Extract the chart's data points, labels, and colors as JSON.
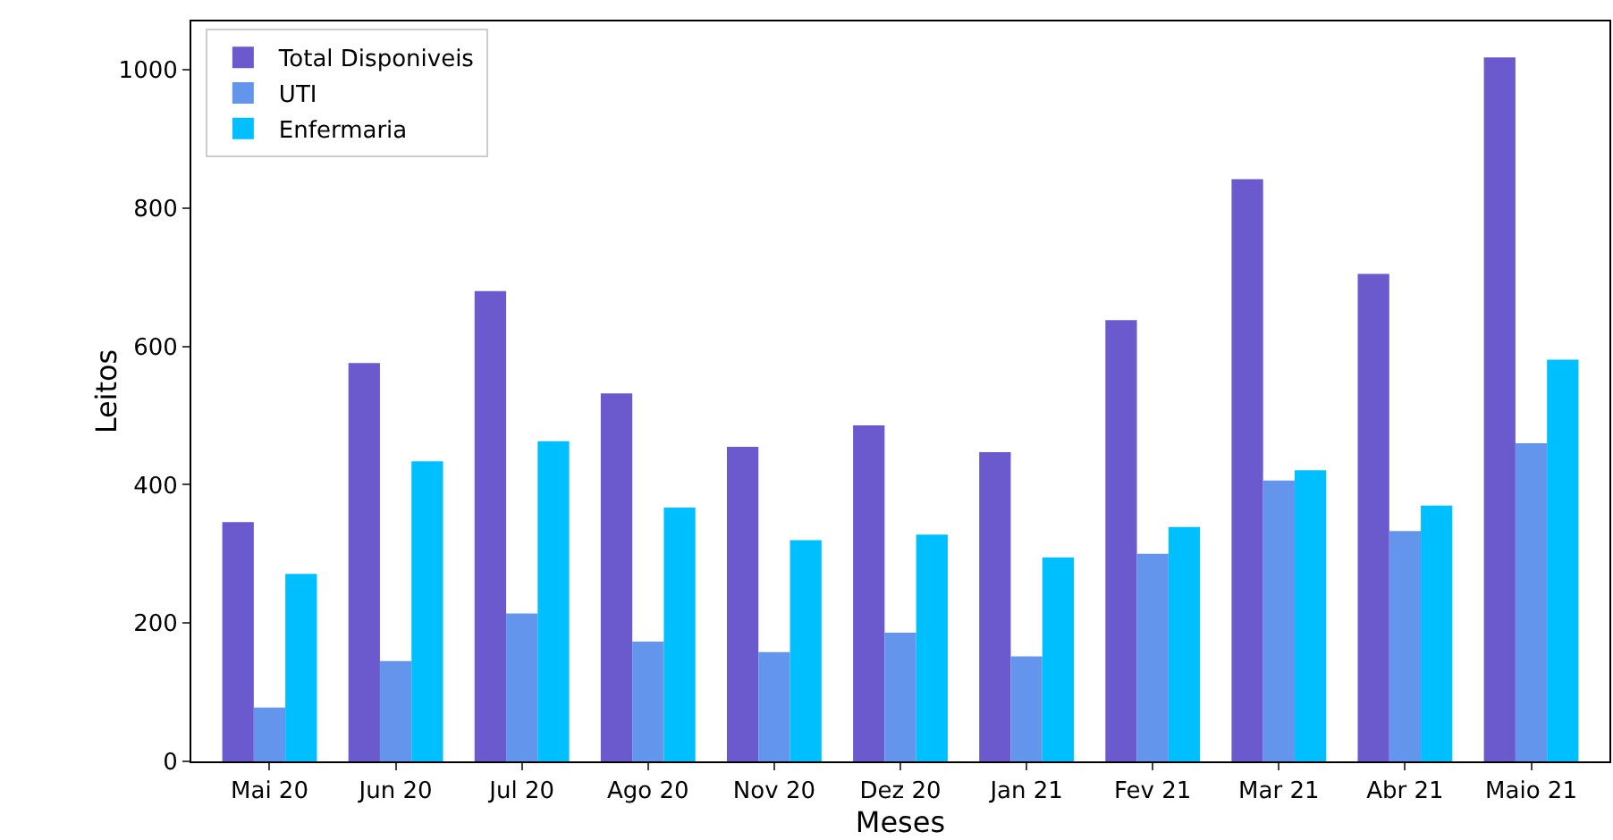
{
  "chart_data": {
    "type": "bar",
    "xlabel": "Meses",
    "ylabel": "Leitos",
    "categories": [
      "Mai 20",
      "Jun 20",
      "Jul 20",
      "Ago 20",
      "Nov 20",
      "Dez 20",
      "Jan 21",
      "Fev 21",
      "Mar 21",
      "Abr 21",
      "Maio 21"
    ],
    "series": [
      {
        "name": "Total Disponiveis",
        "color": "#6a5acd",
        "values": [
          346,
          576,
          680,
          532,
          455,
          486,
          447,
          638,
          842,
          705,
          1018
        ]
      },
      {
        "name": "UTI",
        "color": "#6495ed",
        "values": [
          78,
          145,
          214,
          173,
          158,
          186,
          152,
          300,
          406,
          333,
          460
        ]
      },
      {
        "name": "Enfermaria",
        "color": "#00bfff",
        "values": [
          271,
          434,
          463,
          367,
          320,
          328,
          295,
          339,
          421,
          370,
          581
        ]
      }
    ],
    "ylim": [
      0,
      1070
    ],
    "yticks": [
      0,
      200,
      400,
      600,
      800,
      1000
    ],
    "grid": false,
    "legend": "top left"
  }
}
